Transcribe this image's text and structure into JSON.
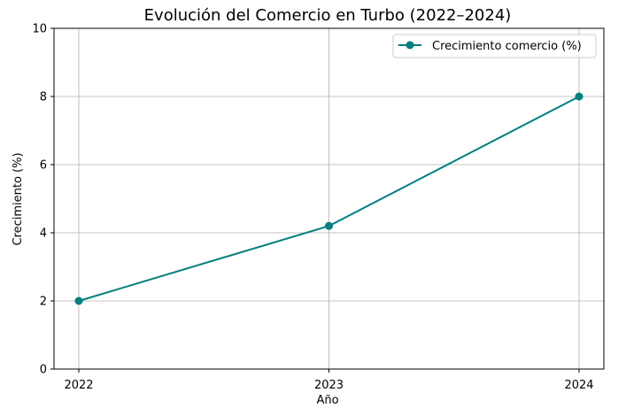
{
  "chart_data": {
    "type": "line",
    "title": "Evolución del Comercio en Turbo (2022–2024)",
    "xlabel": "Año",
    "ylabel": "Crecimiento (%)",
    "x": [
      "2022",
      "2023",
      "2024"
    ],
    "series": [
      {
        "name": "Crecimiento comercio (%)",
        "values": [
          2.0,
          4.2,
          8.0
        ],
        "color": "#008080",
        "marker": "circle"
      }
    ],
    "ylim": [
      0,
      10
    ],
    "yticks": [
      "0",
      "2",
      "4",
      "6",
      "8",
      "10"
    ],
    "grid": true,
    "legend_position": "top-right"
  }
}
